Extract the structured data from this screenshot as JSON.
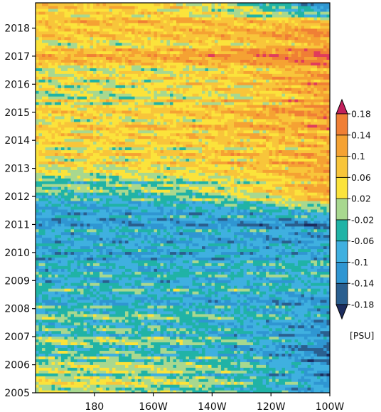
{
  "chart_data": {
    "type": "heatmap",
    "title": "",
    "x": {
      "range": [
        -200,
        -100
      ],
      "ticks": [
        -180,
        -160,
        -140,
        -120,
        -100
      ],
      "tick_labels": [
        "180",
        "160W",
        "140W",
        "120W",
        "100W"
      ]
    },
    "y": {
      "range": [
        2005.0,
        2018.9
      ],
      "ticks": [
        2005,
        2006,
        2007,
        2008,
        2009,
        2010,
        2011,
        2012,
        2013,
        2014,
        2015,
        2016,
        2017,
        2018
      ],
      "tick_labels": [
        "2005",
        "2006",
        "2007",
        "2008",
        "2009",
        "2010",
        "2011",
        "2012",
        "2013",
        "2014",
        "2015",
        "2016",
        "2017",
        "2018"
      ]
    },
    "levels": [
      -0.18,
      -0.14,
      -0.1,
      -0.06,
      -0.02,
      0.02,
      0.06,
      0.1,
      0.14,
      0.18
    ],
    "level_labels": [
      "-0.18",
      "-0.14",
      "-0.1",
      "-0.06",
      "-0.02",
      "0.02",
      "0.06",
      "0.1",
      "0.14",
      "0.18"
    ],
    "colors": [
      "#1c2c5e",
      "#2a5f8f",
      "#2f96d2",
      "#3fb0e0",
      "#20b3a6",
      "#a8d88f",
      "#fbe33b",
      "#f8c53a",
      "#f5a233",
      "#f07f35",
      "#e13c5c",
      "#c2205c"
    ],
    "extend": "both",
    "colorbar_units": "[PSU]",
    "colorbar_position": "right",
    "pattern": {
      "description_rows_years": [
        2005.0,
        2006.5,
        2008.0,
        2009.5,
        2011.0,
        2012.0,
        2013.0,
        2014.0,
        2015.0,
        2016.0,
        2017.0,
        2018.0,
        2018.9
      ],
      "band_mean_west": [
        0.01,
        -0.02,
        -0.05,
        -0.08,
        -0.08,
        -0.06,
        0.03,
        0.05,
        0.04,
        0.02,
        0.07,
        0.06,
        0.08
      ],
      "band_mean_east": [
        -0.12,
        -0.14,
        -0.1,
        -0.06,
        -0.12,
        0.1,
        0.12,
        0.09,
        0.13,
        0.12,
        0.15,
        0.12,
        -0.15
      ]
    }
  }
}
